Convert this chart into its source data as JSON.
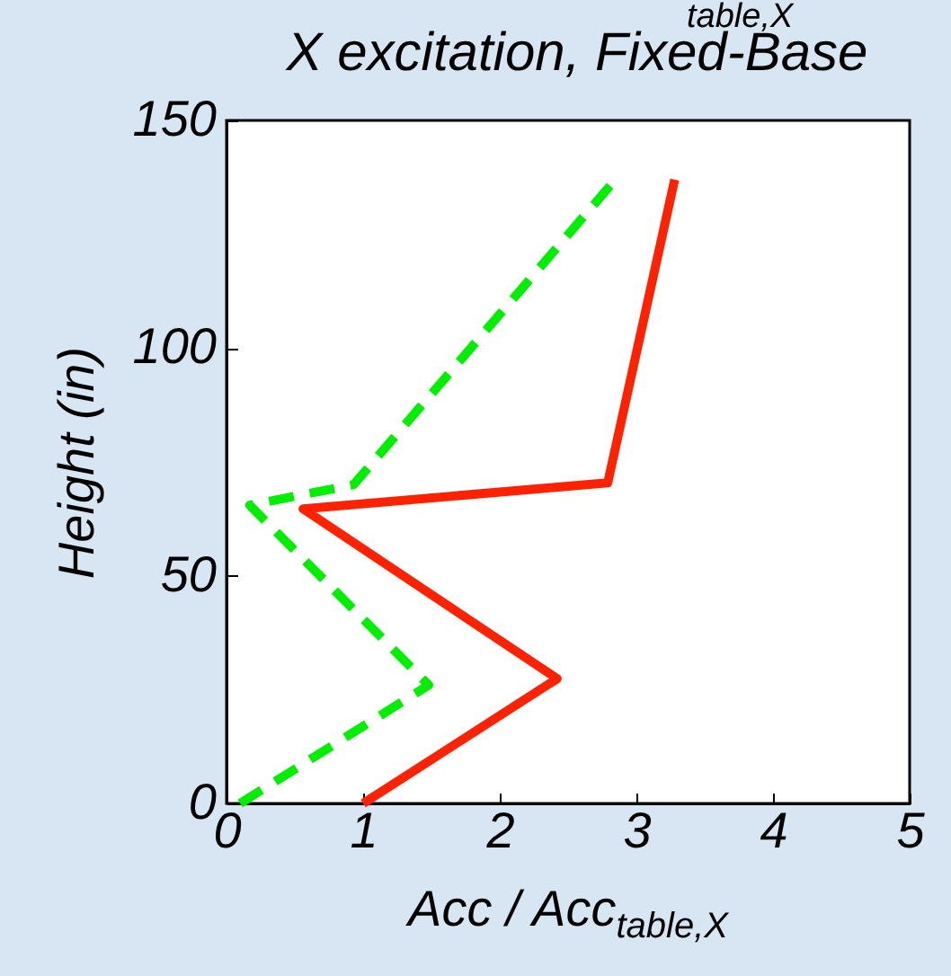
{
  "chart_data": {
    "type": "line",
    "title": "X excitation, Fixed-Base",
    "xlabel": "Acc / Acc$_{table,X}$",
    "ylabel": "Height (in)",
    "annotations": [
      "table,X"
    ],
    "series": [
      {
        "color": "#ff2200",
        "line_style": "solid",
        "x": [
          1.0,
          2.42,
          0.56,
          2.79,
          3.28
        ],
        "values": [
          0,
          27.4,
          64.7,
          70.4,
          137
        ]
      },
      {
        "color": "#00ee00",
        "line_style": "dashed",
        "x": [
          0.1,
          1.48,
          0.17,
          0.93,
          2.86
        ],
        "values": [
          0,
          26,
          65.5,
          70,
          137.5
        ]
      }
    ],
    "xlim": [
      0,
      5
    ],
    "xticks": [
      0,
      1,
      2,
      3,
      4,
      5
    ],
    "ylim": [
      0,
      150
    ],
    "yticks": [
      0,
      50,
      100,
      150
    ],
    "grid": false,
    "marker": "none"
  }
}
